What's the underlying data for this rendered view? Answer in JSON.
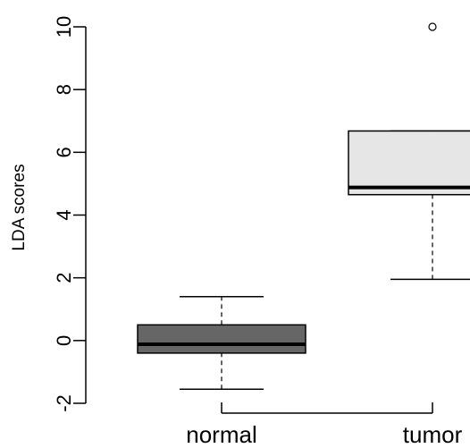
{
  "chart_data": {
    "type": "boxplot",
    "title": "",
    "xlabel": "",
    "ylabel": "LDA scores",
    "ylim": [
      -2,
      10
    ],
    "yticks": [
      -2,
      0,
      2,
      4,
      6,
      8,
      10
    ],
    "ytick_labels": [
      "-2",
      "0",
      "2",
      "4",
      "6",
      "8",
      "10"
    ],
    "categories": [
      "normal",
      "tumor"
    ],
    "boxes": [
      {
        "label": "normal",
        "whisker_low": -1.55,
        "q1": -0.4,
        "median": -0.12,
        "q3": 0.5,
        "whisker_high": 1.4,
        "outliers": [],
        "fill": "#666666"
      },
      {
        "label": "tumor",
        "whisker_low": 1.95,
        "q1": 4.65,
        "median": 4.88,
        "q3": 6.68,
        "whisker_high": 6.68,
        "outliers": [
          10.0
        ],
        "fill": "#e6e6e6"
      }
    ],
    "grid": false,
    "legend": "none"
  }
}
